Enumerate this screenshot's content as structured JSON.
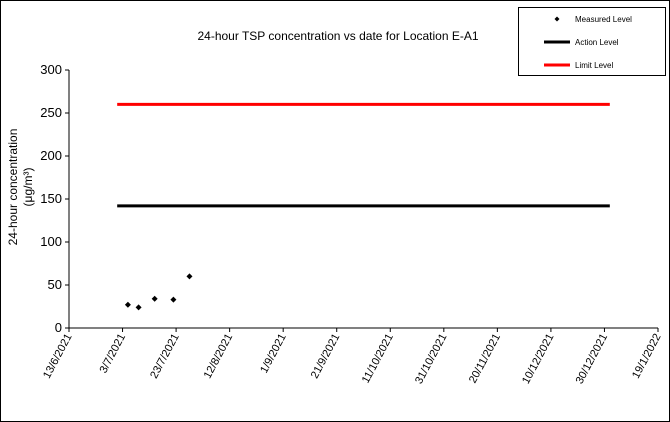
{
  "chart_data": {
    "type": "line",
    "title": "24-hour TSP concentration vs date for Location E-A1",
    "y_label": [
      "24-hour concentration",
      "(μg/m³)"
    ],
    "xlim": [
      "13/6/2021",
      "19/1/2022"
    ],
    "xticks": [
      "13/6/2021",
      "3/7/2021",
      "23/7/2021",
      "12/8/2021",
      "1/9/2021",
      "21/9/2021",
      "11/10/2021",
      "31/10/2021",
      "20/11/2021",
      "10/12/2021",
      "30/12/2021",
      "19/1/2022"
    ],
    "ylim": [
      0,
      300
    ],
    "yticks": [
      0,
      50,
      100,
      150,
      200,
      250,
      300
    ],
    "legend": "top-right",
    "series": [
      {
        "name": "Measured Level",
        "color": "#000000",
        "mode": "markers",
        "x": [
          "5/7/2021",
          "9/7/2021",
          "15/7/2021",
          "22/7/2021",
          "28/7/2021"
        ],
        "values": [
          27,
          24,
          34,
          33,
          60
        ]
      },
      {
        "name": "Action Level",
        "color": "#000000",
        "mode": "lines",
        "x": [
          "1/7/2021",
          "1/1/2022"
        ],
        "values": [
          142,
          142
        ]
      },
      {
        "name": "Limit Level",
        "color": "#ff0000",
        "mode": "lines",
        "x": [
          "1/7/2021",
          "1/1/2022"
        ],
        "values": [
          260,
          260
        ]
      }
    ]
  }
}
